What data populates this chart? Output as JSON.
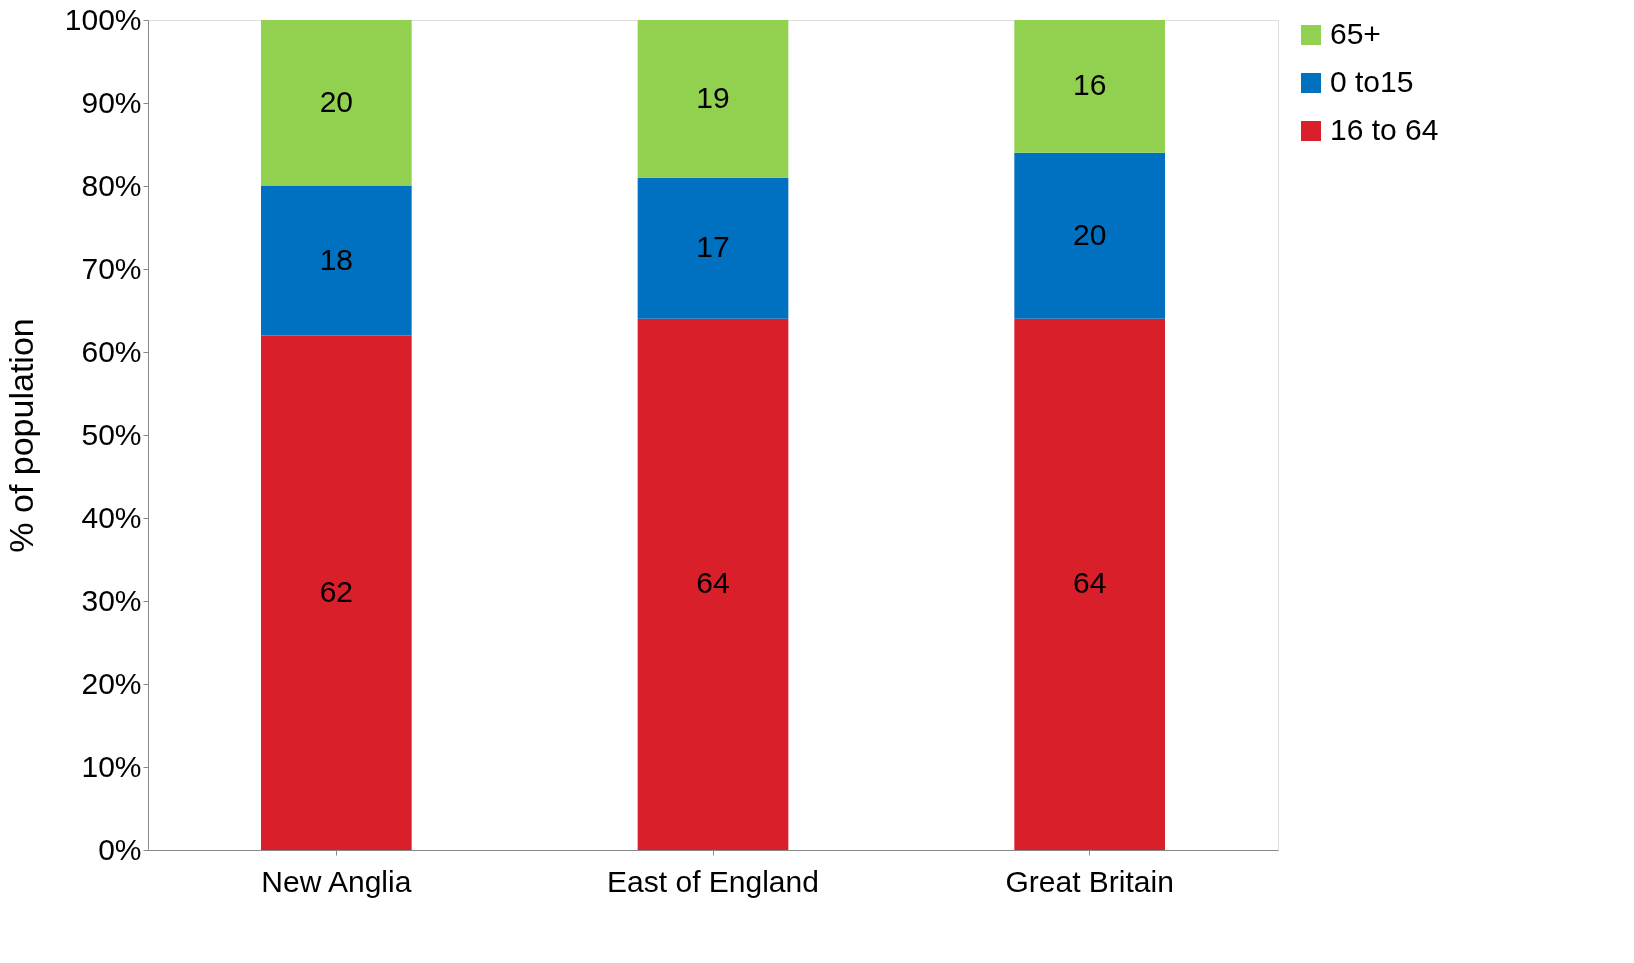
{
  "chart_data": {
    "type": "bar",
    "stacked": true,
    "ylabel": "% of population",
    "categories": [
      "New Anglia",
      "East of England",
      "Great Britain"
    ],
    "series": [
      {
        "name": "16 to 64",
        "color": "#d9202a",
        "values": [
          62,
          64,
          64
        ]
      },
      {
        "name": "0 to15",
        "color": "#0070c0",
        "values": [
          18,
          17,
          20
        ]
      },
      {
        "name": "65+",
        "color": "#92d050",
        "values": [
          20,
          19,
          16
        ]
      }
    ],
    "ylim": [
      0,
      100
    ],
    "yticks": [
      {
        "value": 0,
        "label": "0%"
      },
      {
        "value": 10,
        "label": "10%"
      },
      {
        "value": 20,
        "label": "20%"
      },
      {
        "value": 30,
        "label": "30%"
      },
      {
        "value": 40,
        "label": "40%"
      },
      {
        "value": 50,
        "label": "50%"
      },
      {
        "value": 60,
        "label": "60%"
      },
      {
        "value": 70,
        "label": "70%"
      },
      {
        "value": 80,
        "label": "80%"
      },
      {
        "value": 90,
        "label": "90%"
      },
      {
        "value": 100,
        "label": "100%"
      }
    ],
    "data_labels": true,
    "grid": false,
    "legend": "right"
  }
}
